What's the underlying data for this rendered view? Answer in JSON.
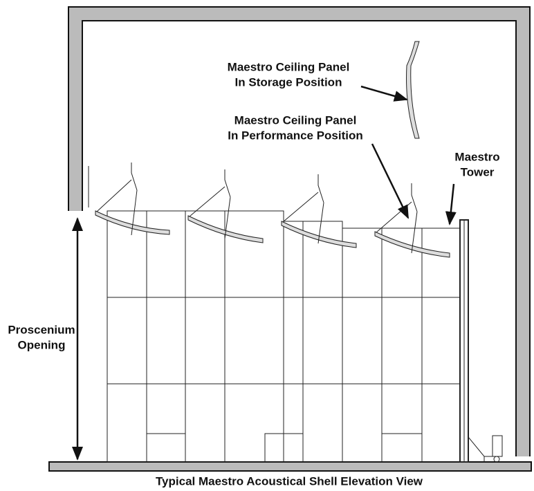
{
  "labels": {
    "storage": [
      "Maestro Ceiling Panel",
      "In Storage Position"
    ],
    "performance": [
      "Maestro Ceiling Panel",
      "In Performance Position"
    ],
    "tower": [
      "Maestro",
      "Tower"
    ],
    "proscenium": [
      "Proscenium",
      "Opening"
    ]
  },
  "caption": "Typical Maestro Acoustical Shell Elevation View"
}
